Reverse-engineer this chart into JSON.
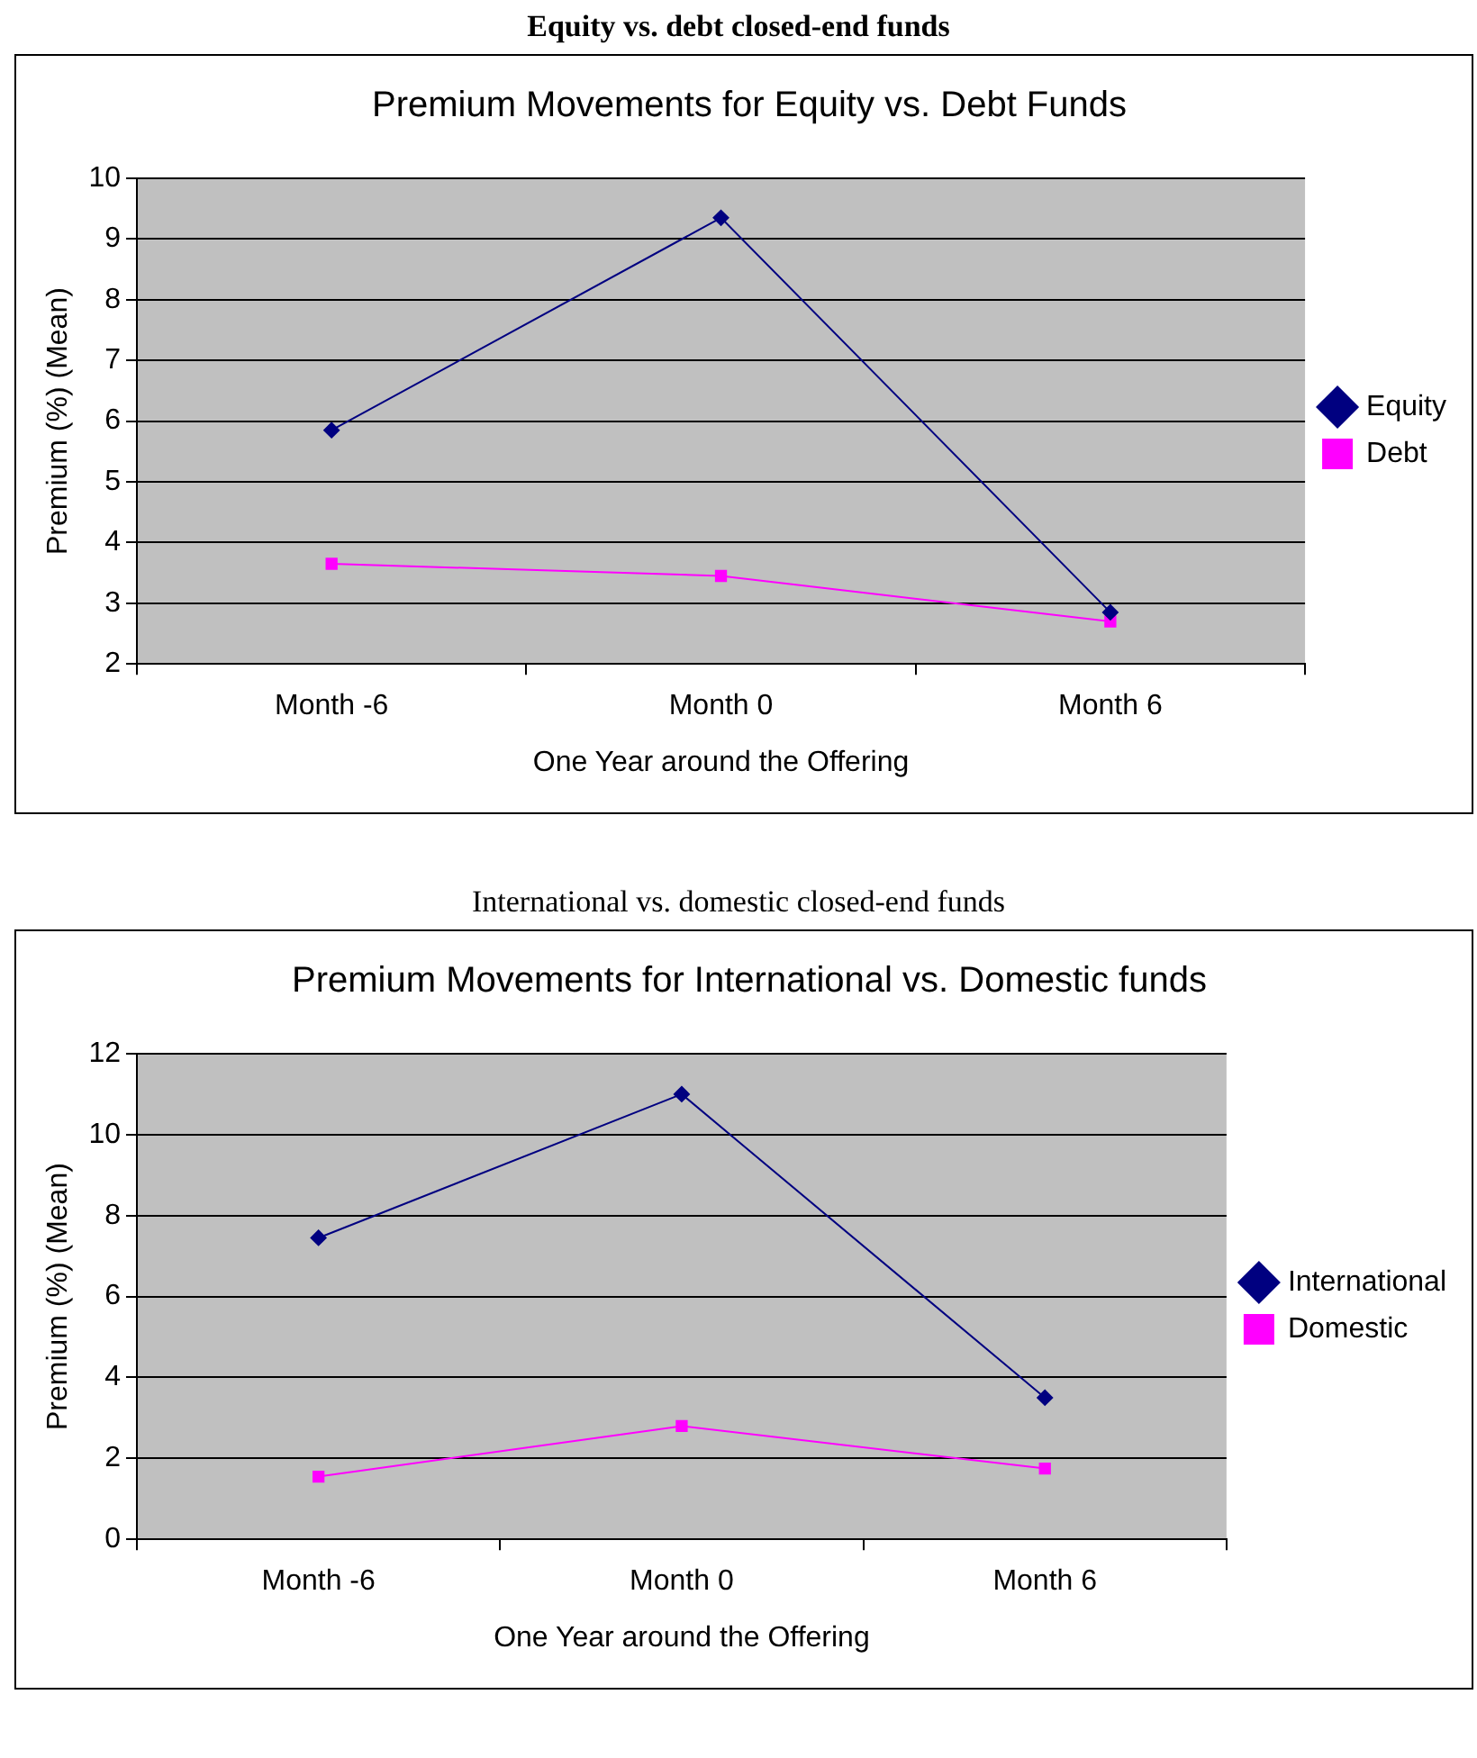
{
  "chart_data": [
    {
      "type": "line",
      "title": "Premium Movements for Equity vs. Debt Funds",
      "xlabel": "One Year around the Offering",
      "ylabel": "Premium (%) (Mean)",
      "annotations": [
        "Equity vs. debt closed-end funds"
      ],
      "categories": [
        "Month -6",
        "Month 0",
        "Month 6"
      ],
      "series": [
        {
          "name": "Equity",
          "color": "#000080",
          "marker": "diamond",
          "values": [
            5.85,
            9.35,
            2.85
          ]
        },
        {
          "name": "Debt",
          "color": "#ff00ff",
          "marker": "square",
          "values": [
            3.65,
            3.45,
            2.7
          ]
        }
      ],
      "ylim": [
        2,
        10
      ],
      "yticks": [
        2,
        3,
        4,
        5,
        6,
        7,
        8,
        9,
        10
      ],
      "grid": "y",
      "legend": "right"
    },
    {
      "type": "line",
      "title": "Premium Movements for International vs. Domestic funds",
      "xlabel": "One Year around the Offering",
      "ylabel": "Premium (%) (Mean)",
      "annotations": [
        "International vs. domestic closed-end funds"
      ],
      "categories": [
        "Month -6",
        "Month 0",
        "Month 6"
      ],
      "series": [
        {
          "name": "International",
          "color": "#000080",
          "marker": "diamond",
          "values": [
            7.45,
            11,
            3.5
          ]
        },
        {
          "name": "Domestic",
          "color": "#ff00ff",
          "marker": "square",
          "values": [
            1.55,
            2.8,
            1.75
          ]
        }
      ],
      "ylim": [
        0,
        12
      ],
      "yticks": [
        0,
        2,
        4,
        6,
        8,
        10,
        12
      ],
      "grid": "y",
      "legend": "right"
    }
  ]
}
